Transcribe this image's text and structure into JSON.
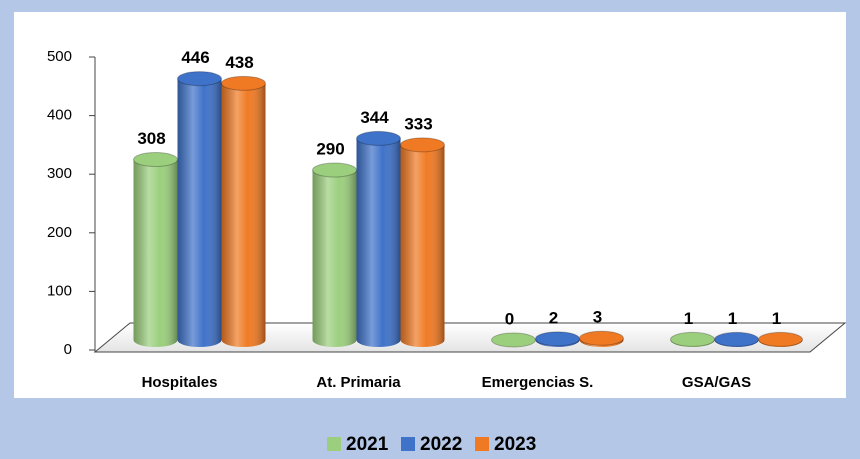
{
  "chart_data": {
    "type": "bar3d",
    "categories": [
      "Hospitales",
      "At. Primaria",
      "Emergencias S.",
      "GSA/GAS"
    ],
    "series": [
      {
        "name": "2021",
        "color": "#9bcf7d",
        "values": [
          308,
          290,
          0,
          1
        ]
      },
      {
        "name": "2022",
        "color": "#3f72c9",
        "values": [
          446,
          344,
          2,
          1
        ]
      },
      {
        "name": "2023",
        "color": "#f07a24",
        "values": [
          438,
          333,
          3,
          1
        ]
      }
    ],
    "ylim": [
      0,
      500
    ],
    "yticks": [
      0,
      100,
      200,
      300,
      400,
      500
    ]
  }
}
